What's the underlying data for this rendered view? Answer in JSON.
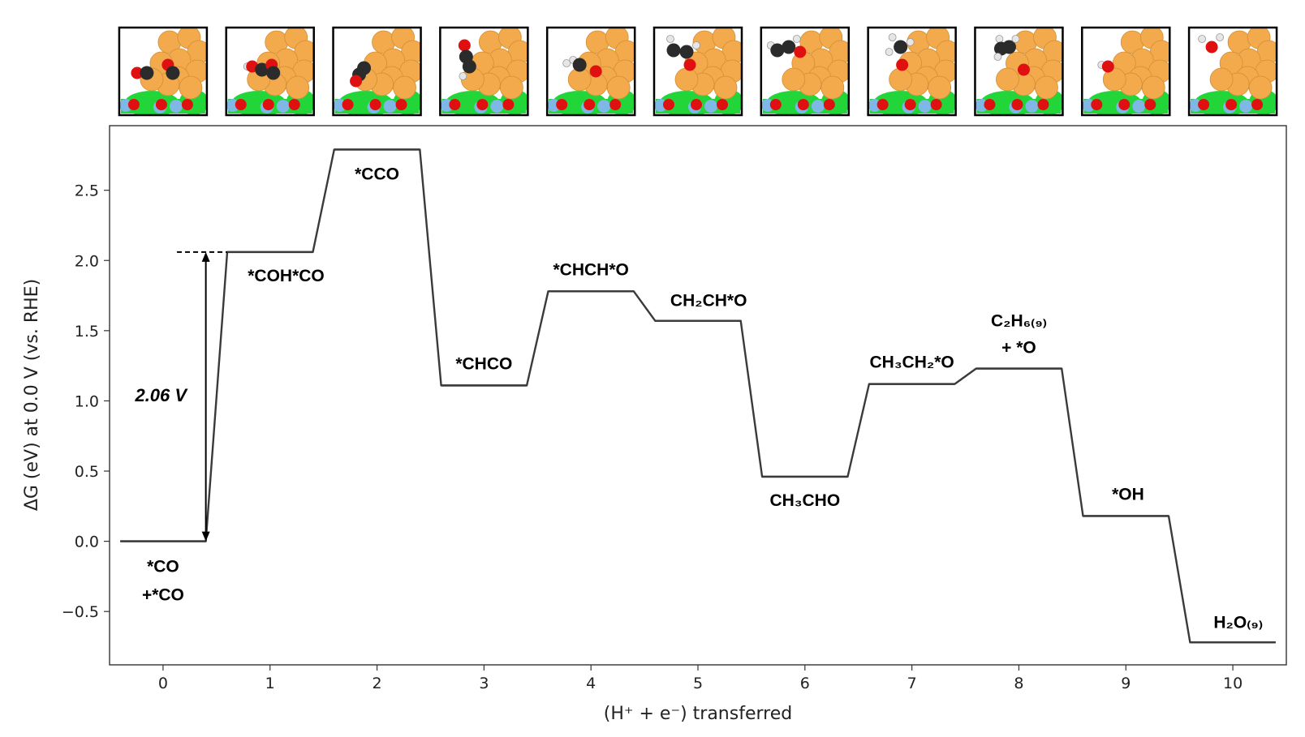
{
  "chart_data": {
    "type": "line",
    "xlabel": "(H⁺ + e⁻) transferred",
    "ylabel": "ΔG (eV) at 0.0 V (vs. RHE)",
    "xlim": [
      -0.5,
      10.5
    ],
    "ylim": [
      -0.88,
      2.96
    ],
    "x_ticks": [
      "0",
      "1",
      "2",
      "3",
      "4",
      "5",
      "6",
      "7",
      "8",
      "9",
      "10"
    ],
    "y_ticks": [
      "−0.5",
      "0.0",
      "0.5",
      "1.0",
      "1.5",
      "2.0",
      "2.5"
    ],
    "y_tick_values": [
      -0.5,
      0.0,
      0.5,
      1.0,
      1.5,
      2.0,
      2.5
    ],
    "line_color": "#3a3a3a",
    "steps": [
      {
        "x": 0,
        "y": 0.0,
        "label": [
          "*CO",
          "+*CO"
        ]
      },
      {
        "x": 1,
        "y": 2.06,
        "label": [
          "*COH*CO"
        ]
      },
      {
        "x": 2,
        "y": 2.79,
        "label": [
          "*CCO"
        ]
      },
      {
        "x": 3,
        "y": 1.11,
        "label": [
          "*CHCO"
        ]
      },
      {
        "x": 4,
        "y": 1.78,
        "label": [
          "*CHCH*O"
        ]
      },
      {
        "x": 5,
        "y": 1.57,
        "label": [
          "CH₂CH*O"
        ]
      },
      {
        "x": 6,
        "y": 0.46,
        "label": [
          "CH₃CHO"
        ]
      },
      {
        "x": 7,
        "y": 1.12,
        "label": [
          "CH₃CH₂*O"
        ]
      },
      {
        "x": 8,
        "y": 1.23,
        "label": [
          "C₂H₆₍₉₎",
          "+ *O"
        ]
      },
      {
        "x": 9,
        "y": 0.18,
        "label": [
          "*OH"
        ]
      },
      {
        "x": 10,
        "y": -0.72,
        "label": [
          "H₂O₍₉₎"
        ]
      }
    ],
    "annotation": {
      "text": "2.06 V",
      "from": 0.0,
      "to": 2.06
    }
  },
  "colors": {
    "adsorbate_carbon": "#2b2b2b",
    "adsorbate_oxygen": "#e01010",
    "adsorbate_hydrogen": "#e6e6e6",
    "metal_atom": "#f2aa4c",
    "support_green": "#22d63a",
    "support_blue": "#7fb7e6"
  }
}
